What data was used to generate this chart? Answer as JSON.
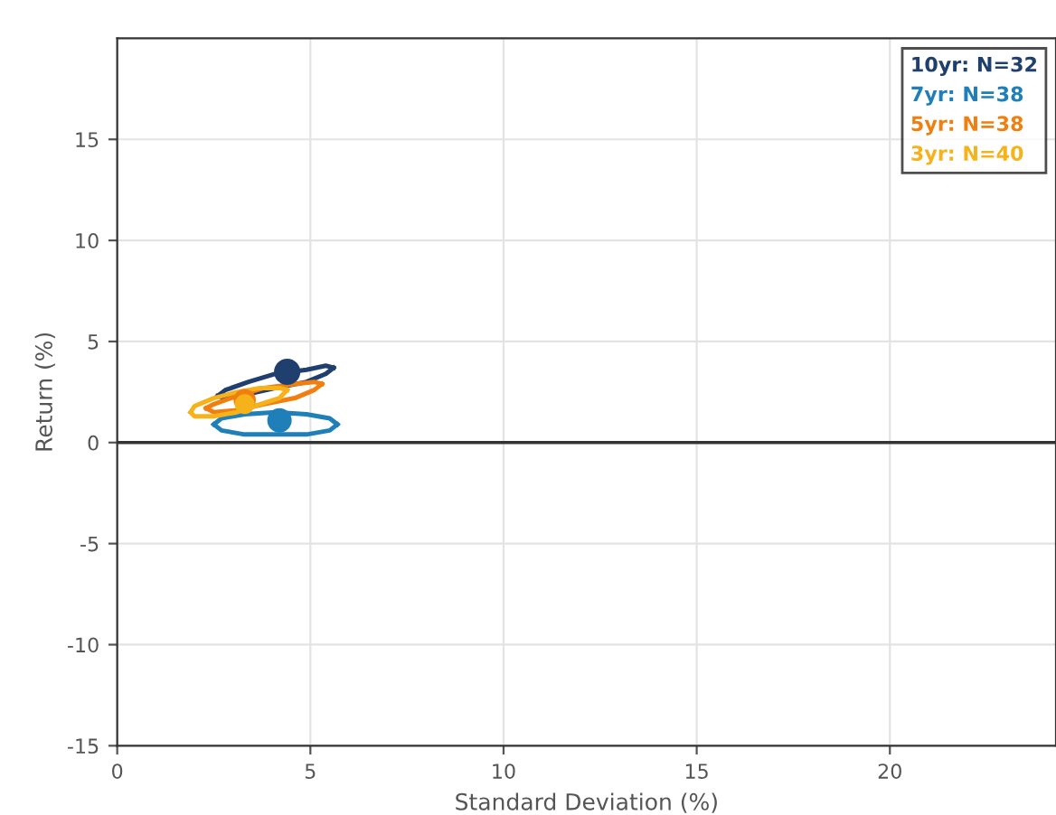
{
  "chart_data": {
    "type": "scatter",
    "xlabel": "Standard Deviation (%)",
    "ylabel": "Return (%)",
    "xlim": [
      0,
      24.3
    ],
    "ylim": [
      -15,
      20
    ],
    "xticks": [
      0,
      5,
      10,
      15,
      20
    ],
    "yticks": [
      -15,
      -10,
      -5,
      0,
      5,
      10,
      15
    ],
    "grid": true,
    "legend": "top right",
    "marker": "circle",
    "ref_lines": [
      {
        "axis": "y",
        "value": 0,
        "color": "#333333"
      }
    ],
    "series": [
      {
        "name": "10yr: N=32",
        "color": "#1f3f6e",
        "x": [
          4.4
        ],
        "values": [
          3.5
        ]
      },
      {
        "name": "7yr: N=38",
        "color": "#1f7fb8",
        "x": [
          4.2
        ],
        "values": [
          1.1
        ]
      },
      {
        "name": "5yr: N=38",
        "color": "#f07f0f",
        "x": [
          3.3
        ],
        "values": [
          2.1
        ]
      },
      {
        "name": "3yr: N=40",
        "color": "#f5b21b",
        "x": [
          3.3
        ],
        "values": [
          1.9
        ]
      },
      {
        "type": "line",
        "marker": "none",
        "color": "#1f3f6e",
        "x": [
          2.6,
          2.8,
          3.4,
          4.1,
          4.9,
          5.4,
          5.6
        ],
        "values": [
          2.3,
          2.6,
          3.0,
          3.4,
          3.6,
          3.8,
          3.7
        ]
      },
      {
        "type": "line",
        "marker": "none",
        "color": "#1f3f6e",
        "x": [
          2.6,
          2.8,
          3.4,
          4.1,
          4.9,
          5.4,
          5.6
        ],
        "values": [
          2.3,
          2.2,
          2.4,
          2.7,
          3.0,
          3.4,
          3.7
        ]
      },
      {
        "type": "line",
        "marker": "none",
        "color": "#1f7fb8",
        "x": [
          2.5,
          2.7,
          3.3,
          4.1,
          4.9,
          5.5,
          5.7
        ],
        "values": [
          0.9,
          1.2,
          1.4,
          1.5,
          1.4,
          1.2,
          0.9
        ]
      },
      {
        "type": "line",
        "marker": "none",
        "color": "#1f7fb8",
        "x": [
          2.5,
          2.7,
          3.3,
          4.1,
          4.9,
          5.5,
          5.7
        ],
        "values": [
          0.9,
          0.6,
          0.4,
          0.4,
          0.4,
          0.6,
          0.9
        ]
      },
      {
        "type": "line",
        "marker": "none",
        "color": "#f07f0f",
        "x": [
          2.3,
          2.5,
          3.1,
          3.8,
          4.6,
          5.1,
          5.3
        ],
        "values": [
          1.7,
          1.9,
          2.3,
          2.7,
          2.9,
          3.0,
          2.9
        ]
      },
      {
        "type": "line",
        "marker": "none",
        "color": "#f07f0f",
        "x": [
          2.3,
          2.5,
          3.1,
          3.8,
          4.6,
          5.1,
          5.3
        ],
        "values": [
          1.7,
          1.5,
          1.6,
          1.9,
          2.2,
          2.6,
          2.9
        ]
      },
      {
        "type": "line",
        "marker": "none",
        "color": "#f5b21b",
        "x": [
          1.9,
          2.0,
          2.5,
          3.1,
          3.7,
          4.2,
          4.4
        ],
        "values": [
          1.5,
          1.8,
          2.2,
          2.5,
          2.7,
          2.7,
          2.6
        ]
      },
      {
        "type": "line",
        "marker": "none",
        "color": "#f5b21b",
        "x": [
          1.9,
          2.0,
          2.5,
          3.1,
          3.7,
          4.2,
          4.4
        ],
        "values": [
          1.5,
          1.3,
          1.3,
          1.5,
          1.9,
          2.2,
          2.6
        ]
      }
    ]
  }
}
